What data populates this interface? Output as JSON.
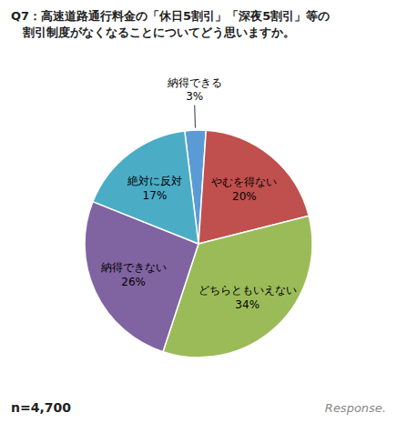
{
  "chart_data": {
    "type": "pie",
    "title": "Q7：高速道路通行料金の「休日5割引」「深夜5割引」等の\n　割引制度がなくなることについてどう思いますか。",
    "categories": [
      "納得できる",
      "やむを得ない",
      "どちらともいえない",
      "納得できない",
      "絶対に反対"
    ],
    "values": [
      3,
      20,
      34,
      26,
      17
    ],
    "value_labels": [
      "3%",
      "20%",
      "34%",
      "26%",
      "17%"
    ],
    "colors": [
      "#5b9bd5",
      "#c0504d",
      "#9bbb59",
      "#8064a2",
      "#4bacc6"
    ],
    "data_labels": true,
    "annotations": [
      "n=4,700",
      "Response."
    ]
  }
}
